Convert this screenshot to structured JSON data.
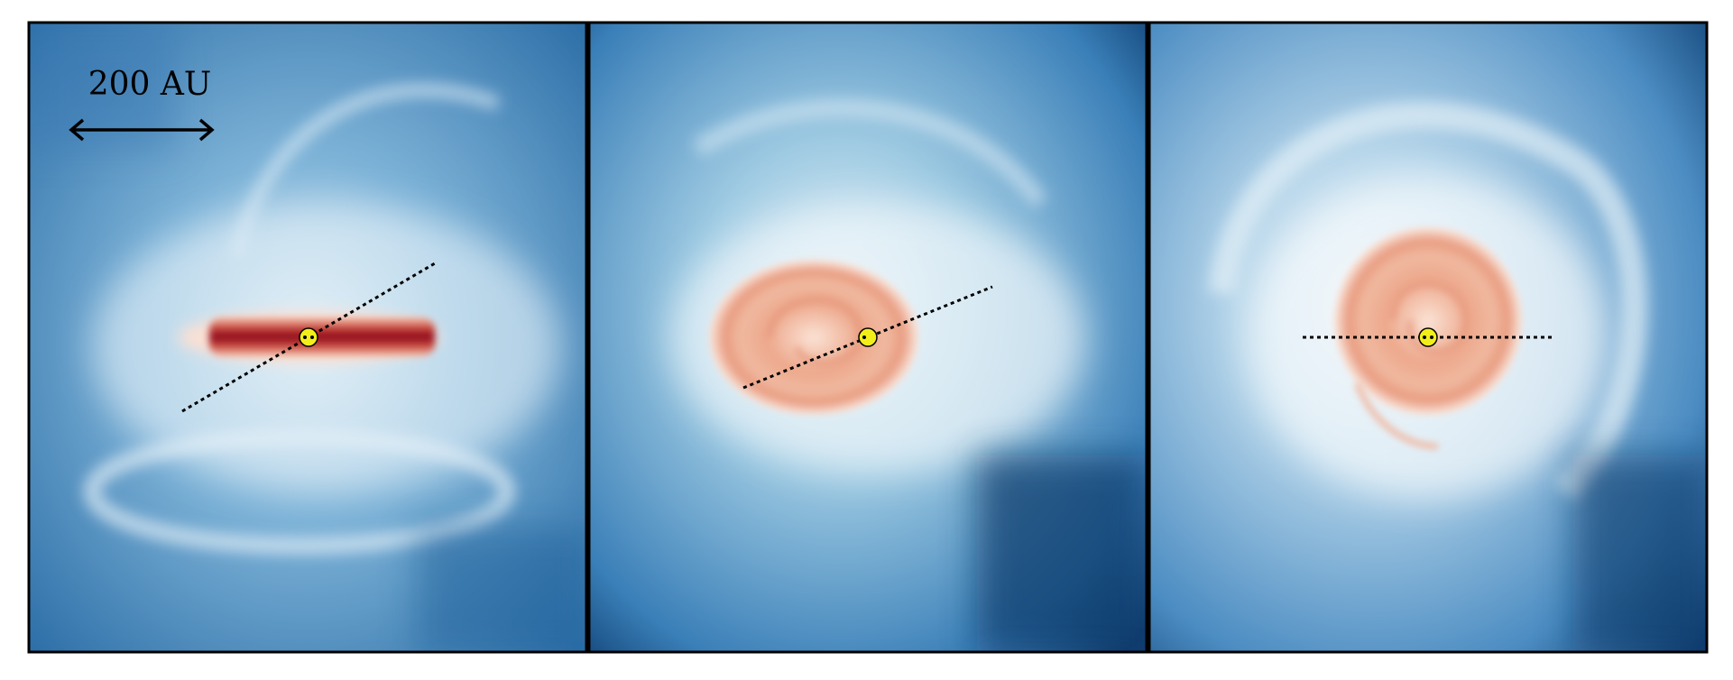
{
  "scale_bar": {
    "label": "200 AU"
  }
}
